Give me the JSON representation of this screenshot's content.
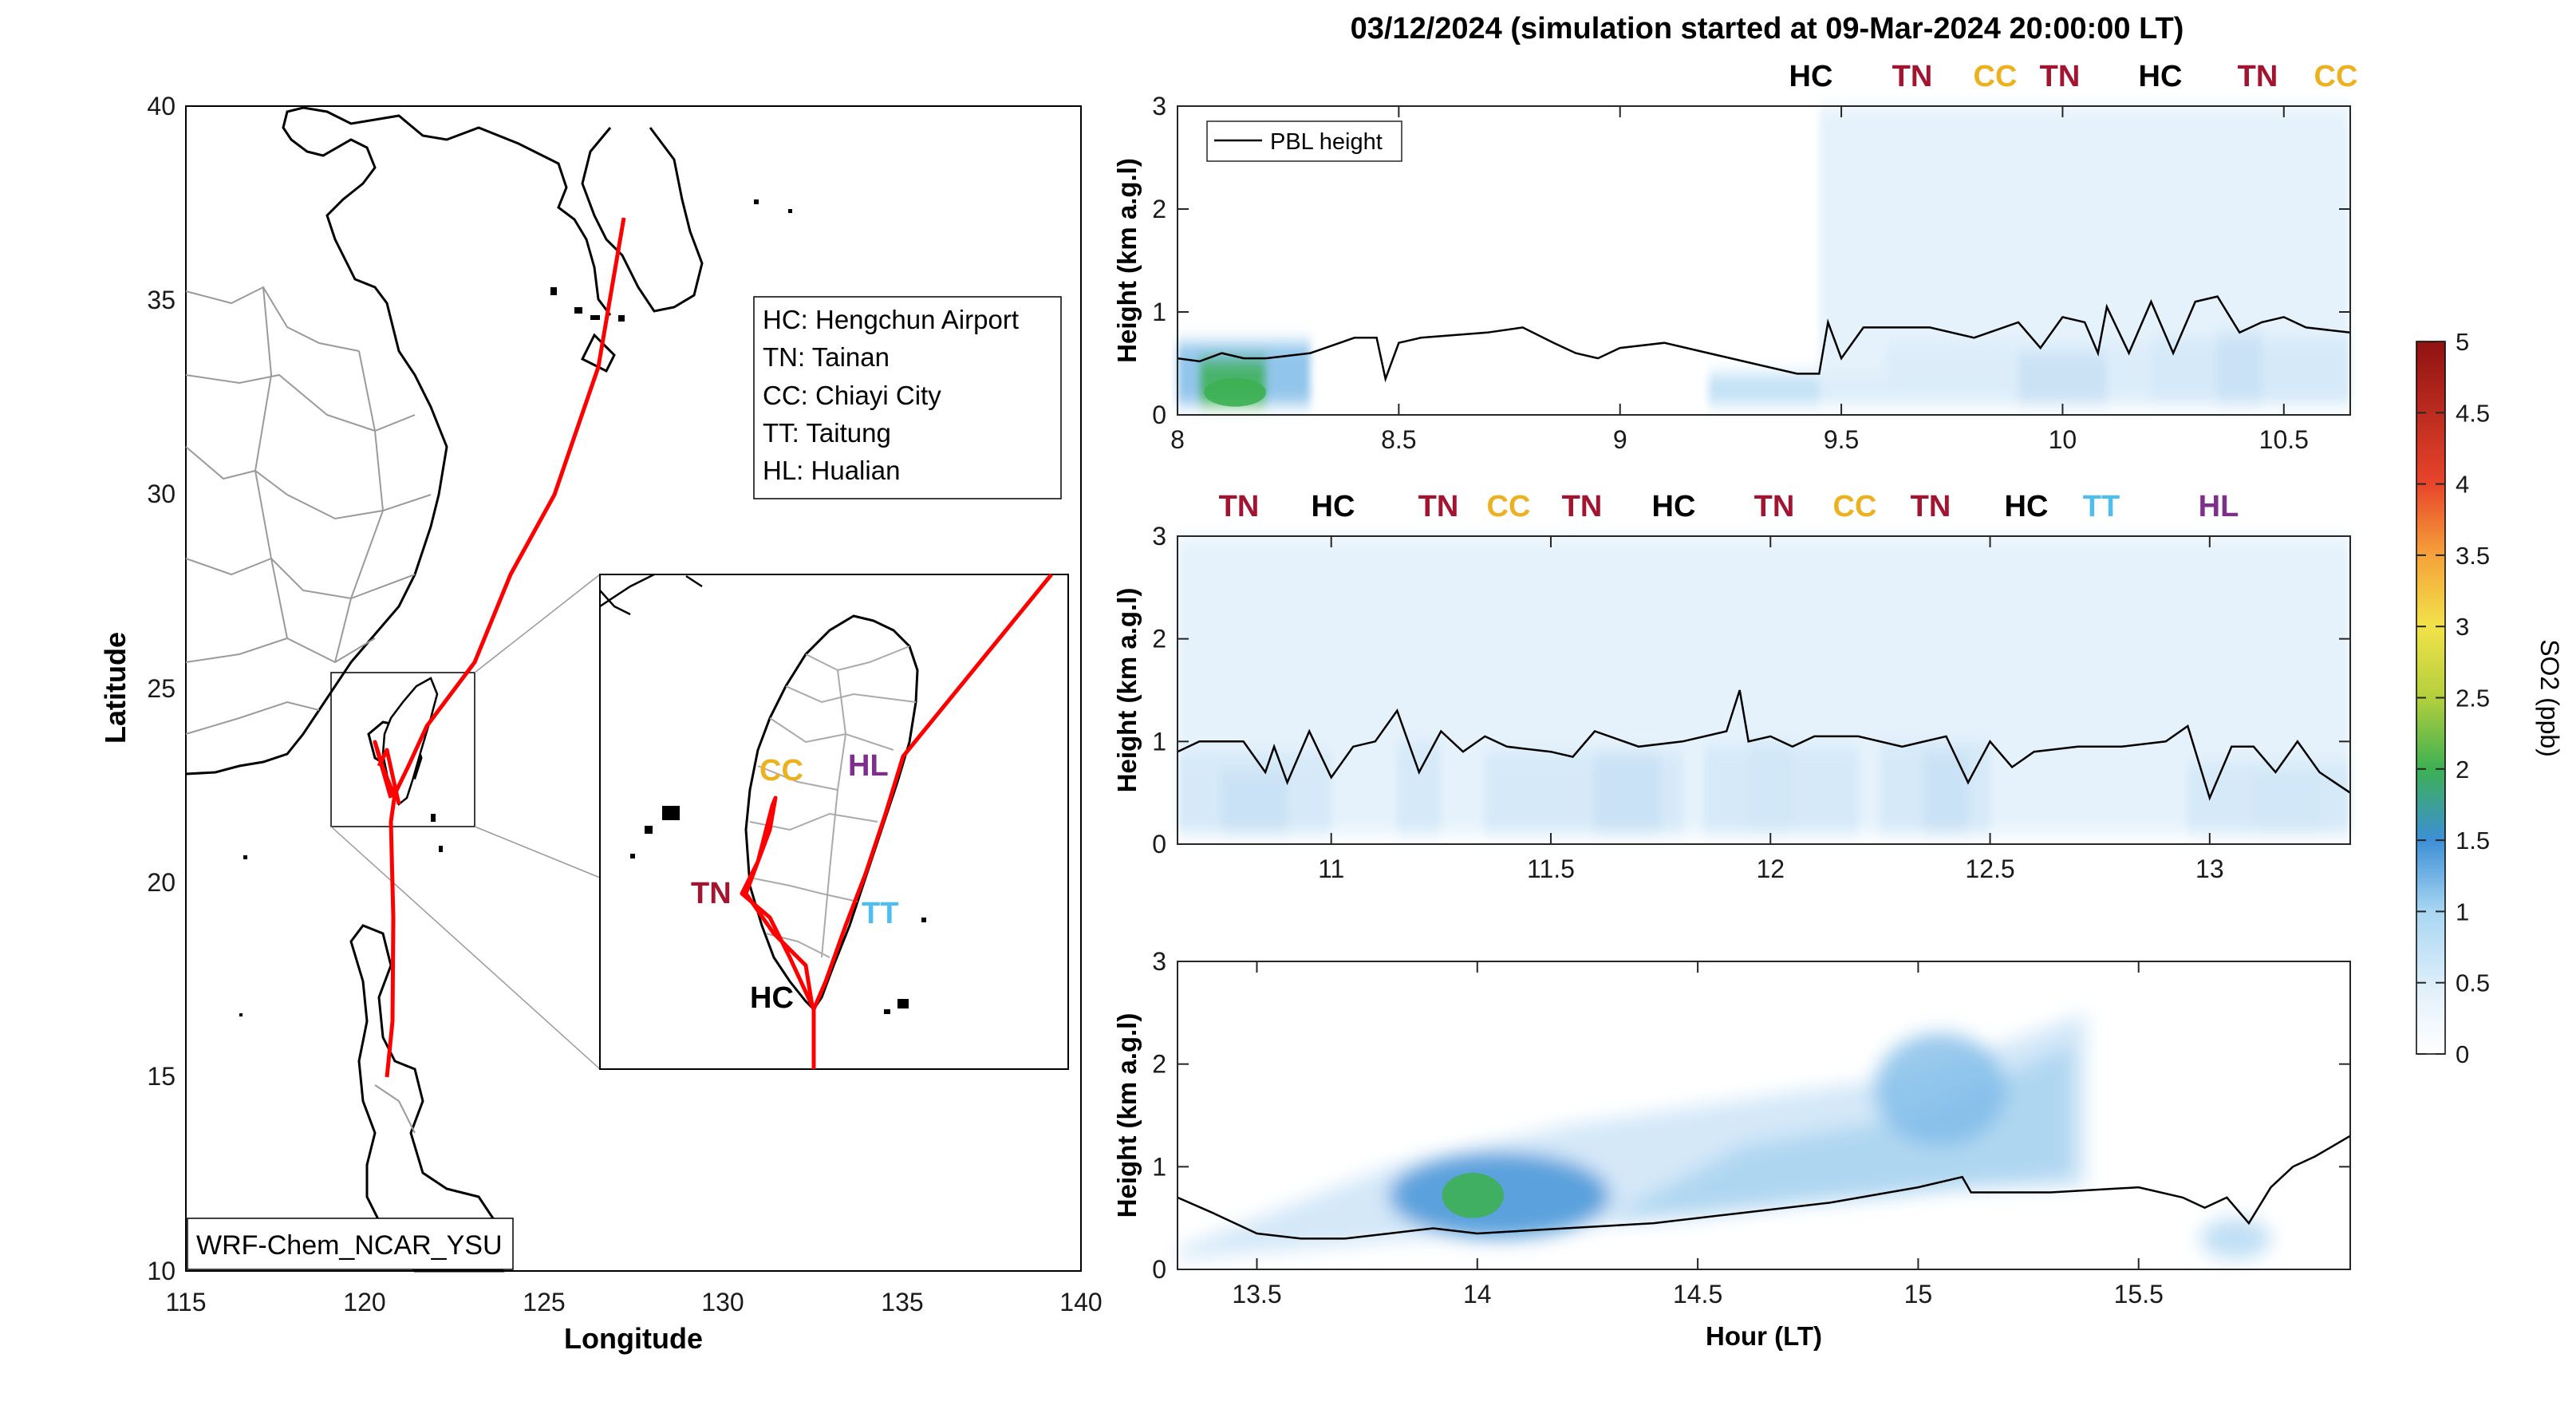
{
  "title": "03/12/2024 (simulation started at 09-Mar-2024 20:00:00 LT)",
  "map": {
    "xlabel": "Longitude",
    "ylabel": "Latitude",
    "xticks": [
      "115",
      "120",
      "125",
      "130",
      "135",
      "140"
    ],
    "yticks": [
      "10",
      "15",
      "20",
      "25",
      "30",
      "35",
      "40"
    ],
    "model_label": "WRF-Chem_NCAR_YSU",
    "legend_lines": [
      "HC: Hengchun Airport",
      "TN: Tainan",
      "CC: Chiayi City",
      "TT: Taitung",
      "HL: Hualian"
    ],
    "inset_sites": [
      {
        "code": "CC",
        "color": "#EDB120"
      },
      {
        "code": "HL",
        "color": "#7E2F8E"
      },
      {
        "code": "TN",
        "color": "#A2142F"
      },
      {
        "code": "TT",
        "color": "#4DBEEE"
      },
      {
        "code": "HC",
        "color": "#000000"
      }
    ],
    "track_color": "#FF0000"
  },
  "panels": {
    "ylabel": "Height (km a.g.l)",
    "xlabel": "Hour (LT)",
    "legend": "PBL height",
    "yticks": [
      "0",
      "1",
      "2",
      "3"
    ],
    "p1": {
      "xticks": [
        "8",
        "8.5",
        "9",
        "9.5",
        "10",
        "10.5"
      ],
      "sites": [
        {
          "code": "HC",
          "color": "#000000"
        },
        {
          "code": "TN",
          "color": "#A2142F"
        },
        {
          "code": "CC",
          "color": "#EDB120"
        },
        {
          "code": "TN",
          "color": "#A2142F"
        },
        {
          "code": "HC",
          "color": "#000000"
        },
        {
          "code": "TN",
          "color": "#A2142F"
        },
        {
          "code": "CC",
          "color": "#EDB120"
        }
      ]
    },
    "p2": {
      "xticks": [
        "11",
        "11.5",
        "12",
        "12.5",
        "13"
      ],
      "sites": [
        {
          "code": "TN",
          "color": "#A2142F"
        },
        {
          "code": "HC",
          "color": "#000000"
        },
        {
          "code": "TN",
          "color": "#A2142F"
        },
        {
          "code": "CC",
          "color": "#EDB120"
        },
        {
          "code": "TN",
          "color": "#A2142F"
        },
        {
          "code": "HC",
          "color": "#000000"
        },
        {
          "code": "TN",
          "color": "#A2142F"
        },
        {
          "code": "CC",
          "color": "#EDB120"
        },
        {
          "code": "TN",
          "color": "#A2142F"
        },
        {
          "code": "HC",
          "color": "#000000"
        },
        {
          "code": "TT",
          "color": "#4DBEEE"
        },
        {
          "code": "HL",
          "color": "#7E2F8E"
        }
      ]
    },
    "p3": {
      "xticks": [
        "13.5",
        "14",
        "14.5",
        "15",
        "15.5"
      ]
    }
  },
  "colorbar": {
    "label": "SO2 (ppb)",
    "ticks": [
      "0",
      "0.5",
      "1",
      "1.5",
      "2",
      "2.5",
      "3",
      "3.5",
      "4",
      "4.5",
      "5"
    ]
  },
  "chart_data": [
    {
      "type": "line",
      "title": "03/12/2024 (simulation started at 09-Mar-2024 20:00:00 LT)",
      "xlabel": "",
      "ylabel": "Height (km a.g.l)",
      "xlim": [
        8,
        10.65
      ],
      "ylim": [
        0,
        3
      ],
      "series": [
        {
          "name": "PBL height",
          "x": [
            8.0,
            8.05,
            8.1,
            8.15,
            8.2,
            8.3,
            8.4,
            8.45,
            8.47,
            8.5,
            8.55,
            8.7,
            8.78,
            8.85,
            8.9,
            8.95,
            9.0,
            9.1,
            9.15,
            9.2,
            9.3,
            9.4,
            9.45,
            9.47,
            9.5,
            9.55,
            9.6,
            9.7,
            9.8,
            9.9,
            9.95,
            10.0,
            10.05,
            10.08,
            10.1,
            10.15,
            10.2,
            10.25,
            10.3,
            10.35,
            10.4,
            10.45,
            10.5,
            10.55,
            10.65
          ],
          "y": [
            0.55,
            0.52,
            0.6,
            0.55,
            0.55,
            0.6,
            0.75,
            0.75,
            0.35,
            0.7,
            0.75,
            0.8,
            0.85,
            0.7,
            0.6,
            0.55,
            0.65,
            0.7,
            0.65,
            0.6,
            0.5,
            0.4,
            0.4,
            0.9,
            0.55,
            0.85,
            0.85,
            0.85,
            0.75,
            0.9,
            0.65,
            0.95,
            0.9,
            0.6,
            1.05,
            0.6,
            1.1,
            0.6,
            1.1,
            1.15,
            0.8,
            0.9,
            0.95,
            0.85,
            0.8
          ]
        }
      ]
    },
    {
      "type": "line",
      "xlabel": "",
      "ylabel": "Height (km a.g.l)",
      "xlim": [
        10.65,
        13.32
      ],
      "ylim": [
        0,
        3
      ],
      "series": [
        {
          "name": "PBL height",
          "x": [
            10.65,
            10.7,
            10.8,
            10.85,
            10.87,
            10.9,
            10.95,
            11.0,
            11.05,
            11.1,
            11.15,
            11.2,
            11.25,
            11.3,
            11.35,
            11.4,
            11.5,
            11.55,
            11.6,
            11.7,
            11.8,
            11.9,
            11.93,
            11.95,
            12.0,
            12.05,
            12.1,
            12.2,
            12.3,
            12.4,
            12.45,
            12.5,
            12.55,
            12.6,
            12.7,
            12.8,
            12.9,
            12.95,
            13.0,
            13.05,
            13.1,
            13.15,
            13.2,
            13.25,
            13.32
          ],
          "y": [
            0.9,
            1.0,
            1.0,
            0.7,
            0.95,
            0.6,
            1.1,
            0.65,
            0.95,
            1.0,
            1.3,
            0.7,
            1.1,
            0.9,
            1.05,
            0.95,
            0.9,
            0.85,
            1.1,
            0.95,
            1.0,
            1.1,
            1.5,
            1.0,
            1.05,
            0.95,
            1.05,
            1.05,
            0.95,
            1.05,
            0.6,
            1.0,
            0.75,
            0.9,
            0.95,
            0.95,
            1.0,
            1.15,
            0.45,
            0.95,
            0.95,
            0.7,
            1.0,
            0.7,
            0.5
          ]
        }
      ]
    },
    {
      "type": "line",
      "xlabel": "Hour (LT)",
      "ylabel": "Height (km a.g.l)",
      "xlim": [
        13.32,
        15.98
      ],
      "ylim": [
        0,
        3
      ],
      "series": [
        {
          "name": "PBL height",
          "x": [
            13.32,
            13.4,
            13.5,
            13.6,
            13.7,
            13.8,
            13.9,
            14.0,
            14.2,
            14.4,
            14.6,
            14.8,
            15.0,
            15.1,
            15.12,
            15.3,
            15.5,
            15.6,
            15.65,
            15.7,
            15.75,
            15.8,
            15.85,
            15.9,
            15.98
          ],
          "y": [
            0.7,
            0.55,
            0.35,
            0.3,
            0.3,
            0.35,
            0.4,
            0.35,
            0.4,
            0.45,
            0.55,
            0.65,
            0.8,
            0.9,
            0.75,
            0.75,
            0.8,
            0.7,
            0.6,
            0.7,
            0.45,
            0.8,
            1.0,
            1.1,
            1.3
          ]
        }
      ]
    }
  ]
}
